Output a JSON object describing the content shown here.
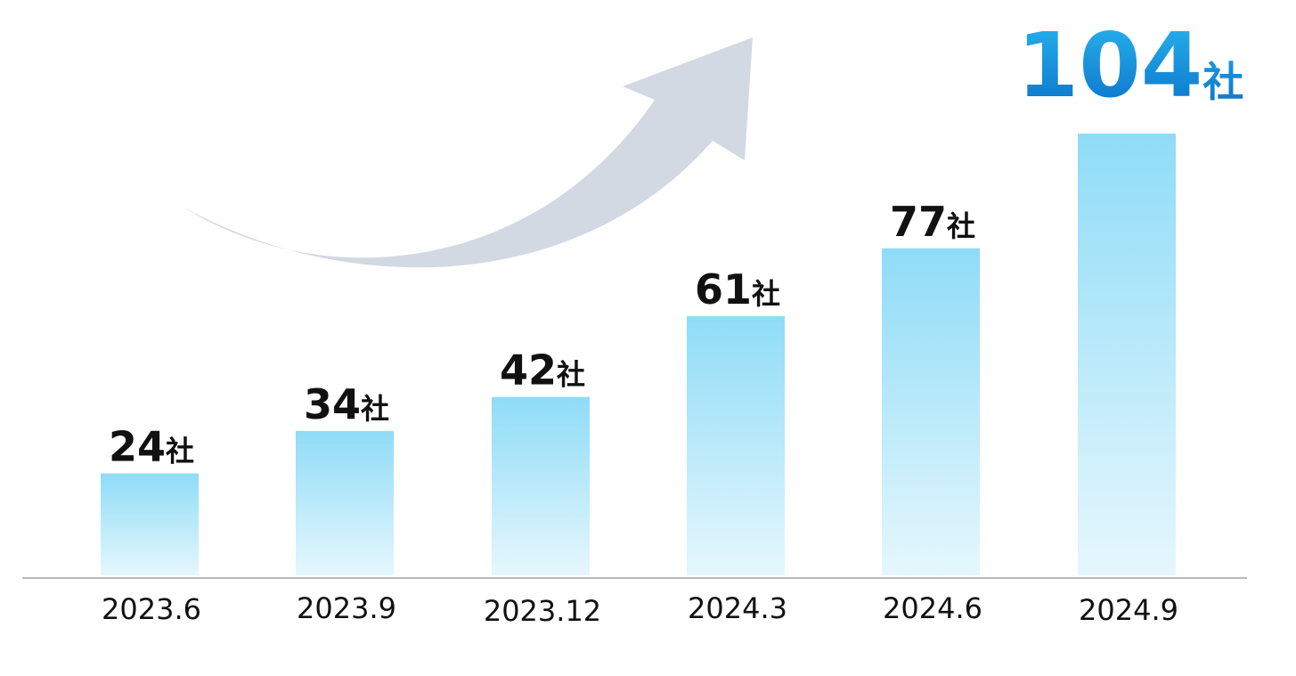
{
  "chart_data": {
    "type": "bar",
    "categories": [
      "2023.6",
      "2023.9",
      "2023.12",
      "2024.3",
      "2024.6",
      "2024.9"
    ],
    "values": [
      24,
      34,
      42,
      61,
      77,
      104
    ],
    "data_labels": [
      {
        "number": "24",
        "unit": "社"
      },
      {
        "number": "34",
        "unit": "社"
      },
      {
        "number": "42",
        "unit": "社"
      },
      {
        "number": "61",
        "unit": "社"
      },
      {
        "number": "77",
        "unit": "社"
      },
      {
        "number": "104",
        "unit": "社"
      }
    ],
    "title": "",
    "xlabel": "",
    "ylabel": "",
    "ylim": [
      0,
      104
    ],
    "grid": false,
    "legend": "none",
    "decoration": "upward-trend-arrow",
    "colors": {
      "bar_top": "#8fdcf7",
      "bar_bottom": "#e6f7fd",
      "highlight_label_top": "#29b6ee",
      "highlight_label_bottom": "#0a6fc9",
      "label": "#111111",
      "arrow": "#d3d9e3",
      "baseline": "#b9b9b9"
    }
  }
}
